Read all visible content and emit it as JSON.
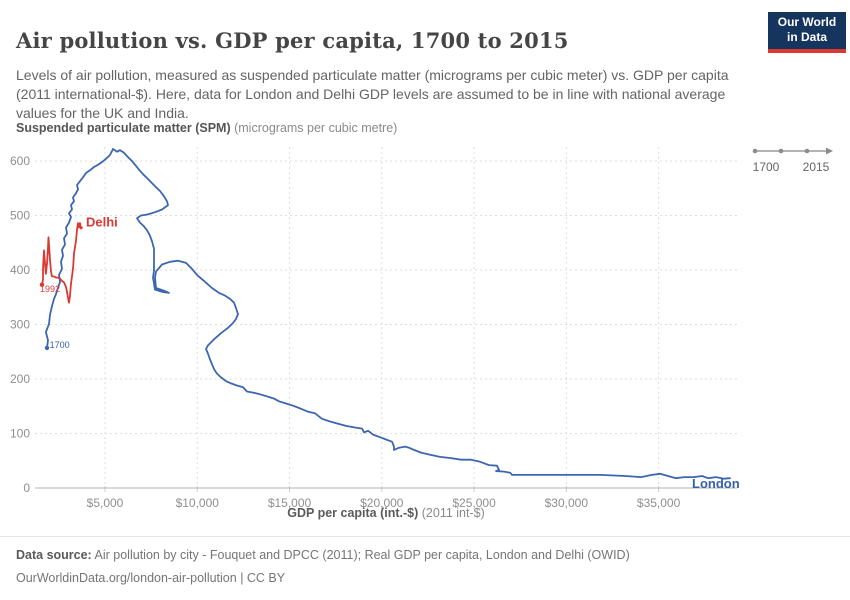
{
  "header": {
    "title": "Air pollution vs. GDP per capita, 1700 to 2015",
    "logo": {
      "line1": "Our World",
      "line2": "in Data"
    },
    "subtitle": "Levels of air pollution, measured as suspended particulate matter (micrograms per cubic meter) vs. GDP per capita (2011 international-$). Here, data for London and Delhi GDP levels are assumed to be in line with national average values for the UK and India."
  },
  "timeline": {
    "start_label": "1700",
    "end_label": "2015"
  },
  "footer": {
    "source_label": "Data source:",
    "source_text": "Air pollution by city - Fouquet and DPCC (2011); Real GDP per capita, London and Delhi (OWID)",
    "link_line": "OurWorldinData.org/london-air-pollution | CC BY"
  },
  "chart_data": {
    "type": "line",
    "title": "Air pollution vs. GDP per capita, 1700 to 2015",
    "xlabel_bold": "GDP per capita (int.-$)",
    "xlabel_unit": "(2011 int-$)",
    "ylabel_bold": "Suspended particulate matter (SPM)",
    "ylabel_unit": "(micrograms per cubic metre)",
    "grid": true,
    "x_axis": {
      "min": 1200,
      "max": 39300,
      "ticks": [
        {
          "v": 5000,
          "label": "$5,000"
        },
        {
          "v": 10000,
          "label": "$10,000"
        },
        {
          "v": 15000,
          "label": "$15,000"
        },
        {
          "v": 20000,
          "label": "$20,000"
        },
        {
          "v": 25000,
          "label": "$25,000"
        },
        {
          "v": 30000,
          "label": "$30,000"
        },
        {
          "v": 35000,
          "label": "$35,000"
        }
      ]
    },
    "y_axis": {
      "min": 0,
      "max": 625,
      "ticks": [
        0,
        100,
        200,
        300,
        400,
        500,
        600
      ]
    },
    "series": [
      {
        "name": "London",
        "color": "#3d66b0",
        "start_year": "1700",
        "end_year": "2015",
        "points": [
          [
            1856,
            257
          ],
          [
            1910,
            271
          ],
          [
            1800,
            286
          ],
          [
            1965,
            301
          ],
          [
            2020,
            318
          ],
          [
            2127,
            334
          ],
          [
            2235,
            347
          ],
          [
            2345,
            356
          ],
          [
            2450,
            367
          ],
          [
            2560,
            378
          ],
          [
            2505,
            391
          ],
          [
            2670,
            402
          ],
          [
            2615,
            415
          ],
          [
            2725,
            426
          ],
          [
            2670,
            437
          ],
          [
            2830,
            447
          ],
          [
            2780,
            458
          ],
          [
            2940,
            467
          ],
          [
            2885,
            478
          ],
          [
            3050,
            487
          ],
          [
            3160,
            497
          ],
          [
            3050,
            504
          ],
          [
            3210,
            511
          ],
          [
            3160,
            519
          ],
          [
            3320,
            526
          ],
          [
            3265,
            533
          ],
          [
            3430,
            541
          ],
          [
            3535,
            548
          ],
          [
            3480,
            556
          ],
          [
            3645,
            563
          ],
          [
            3810,
            570
          ],
          [
            3970,
            578
          ],
          [
            4185,
            583
          ],
          [
            4405,
            589
          ],
          [
            4620,
            593
          ],
          [
            4840,
            598
          ],
          [
            5055,
            604
          ],
          [
            5270,
            611
          ],
          [
            5435,
            622
          ],
          [
            5650,
            617
          ],
          [
            5815,
            620
          ],
          [
            6030,
            615
          ],
          [
            6245,
            607
          ],
          [
            6465,
            600
          ],
          [
            6680,
            591
          ],
          [
            6895,
            582
          ],
          [
            7115,
            574
          ],
          [
            7330,
            567
          ],
          [
            7550,
            559
          ],
          [
            7765,
            552
          ],
          [
            7980,
            545
          ],
          [
            8200,
            535
          ],
          [
            8360,
            526
          ],
          [
            8415,
            519
          ],
          [
            8090,
            511
          ],
          [
            7710,
            506
          ],
          [
            7330,
            502
          ],
          [
            6950,
            500
          ],
          [
            6735,
            495
          ],
          [
            6895,
            487
          ],
          [
            7115,
            480
          ],
          [
            7275,
            473
          ],
          [
            7440,
            463
          ],
          [
            7550,
            452
          ],
          [
            7655,
            439
          ],
          [
            7655,
            425
          ],
          [
            7655,
            410
          ],
          [
            7655,
            399
          ],
          [
            7600,
            386
          ],
          [
            7655,
            375
          ],
          [
            7710,
            364
          ],
          [
            8090,
            360
          ],
          [
            8470,
            358
          ],
          [
            8200,
            362
          ],
          [
            7765,
            367
          ],
          [
            7710,
            386
          ],
          [
            7765,
            397
          ],
          [
            8090,
            410
          ],
          [
            8525,
            415
          ],
          [
            8955,
            417
          ],
          [
            9390,
            413
          ],
          [
            9715,
            402
          ],
          [
            9985,
            391
          ],
          [
            10365,
            380
          ],
          [
            10800,
            367
          ],
          [
            11180,
            358
          ],
          [
            11505,
            353
          ],
          [
            11775,
            347
          ],
          [
            11990,
            340
          ],
          [
            12100,
            330
          ],
          [
            12210,
            319
          ],
          [
            12100,
            310
          ],
          [
            11940,
            303
          ],
          [
            11665,
            294
          ],
          [
            11285,
            284
          ],
          [
            10910,
            273
          ],
          [
            10585,
            262
          ],
          [
            10475,
            255
          ],
          [
            10585,
            246
          ],
          [
            10690,
            236
          ],
          [
            10800,
            227
          ],
          [
            10910,
            218
          ],
          [
            11070,
            210
          ],
          [
            11285,
            203
          ],
          [
            11560,
            196
          ],
          [
            11830,
            192
          ],
          [
            12155,
            188
          ],
          [
            12480,
            185
          ],
          [
            12695,
            177
          ],
          [
            13020,
            175
          ],
          [
            13400,
            172
          ],
          [
            13780,
            168
          ],
          [
            14160,
            164
          ],
          [
            14430,
            159
          ],
          [
            14810,
            155
          ],
          [
            15190,
            151
          ],
          [
            15570,
            146
          ],
          [
            16000,
            140
          ],
          [
            16380,
            137
          ],
          [
            16760,
            127
          ],
          [
            17195,
            122
          ],
          [
            17630,
            118
          ],
          [
            18060,
            114
          ],
          [
            18550,
            111
          ],
          [
            18930,
            109
          ],
          [
            19035,
            102
          ],
          [
            19255,
            105
          ],
          [
            19525,
            98
          ],
          [
            19850,
            94
          ],
          [
            20230,
            89
          ],
          [
            20555,
            85
          ],
          [
            20660,
            76
          ],
          [
            20660,
            70
          ],
          [
            20935,
            74
          ],
          [
            21260,
            76
          ],
          [
            21475,
            74
          ],
          [
            21745,
            70
          ],
          [
            22125,
            65
          ],
          [
            22615,
            61
          ],
          [
            23155,
            57
          ],
          [
            23695,
            55
          ],
          [
            24295,
            52
          ],
          [
            24835,
            52
          ],
          [
            25325,
            48
          ],
          [
            25810,
            42
          ],
          [
            26245,
            41
          ],
          [
            26355,
            33
          ],
          [
            26190,
            31
          ],
          [
            26625,
            30
          ],
          [
            26950,
            28
          ],
          [
            27060,
            24
          ],
          [
            27760,
            24
          ],
          [
            29660,
            24
          ],
          [
            31830,
            24
          ],
          [
            33180,
            22
          ],
          [
            34050,
            20
          ],
          [
            34645,
            24
          ],
          [
            35080,
            26
          ],
          [
            35510,
            22
          ],
          [
            35945,
            18
          ],
          [
            36380,
            20
          ],
          [
            36920,
            20
          ],
          [
            37355,
            22
          ],
          [
            37680,
            18
          ],
          [
            38115,
            20
          ],
          [
            38545,
            17
          ],
          [
            38870,
            18
          ]
        ]
      },
      {
        "name": "Delhi",
        "color": "#d93a34",
        "start_year": "1992",
        "points": [
          [
            1585,
            373
          ],
          [
            1640,
            382
          ],
          [
            1640,
            402
          ],
          [
            1695,
            436
          ],
          [
            1750,
            412
          ],
          [
            1800,
            393
          ],
          [
            1855,
            412
          ],
          [
            1910,
            441
          ],
          [
            1937,
            460
          ],
          [
            2020,
            419
          ],
          [
            2075,
            397
          ],
          [
            2127,
            388
          ],
          [
            2235,
            388
          ],
          [
            2345,
            386
          ],
          [
            2450,
            386
          ],
          [
            2560,
            384
          ],
          [
            2670,
            380
          ],
          [
            2780,
            377
          ],
          [
            2885,
            369
          ],
          [
            2940,
            360
          ],
          [
            2995,
            349
          ],
          [
            3050,
            340
          ],
          [
            3105,
            353
          ],
          [
            3160,
            375
          ],
          [
            3265,
            402
          ],
          [
            3320,
            430
          ],
          [
            3430,
            454
          ],
          [
            3480,
            474
          ],
          [
            3535,
            486
          ],
          [
            3590,
            478
          ],
          [
            3645,
            486
          ],
          [
            3700,
            476
          ],
          [
            3755,
            478
          ]
        ]
      }
    ],
    "annotations": [
      {
        "text": "Delhi",
        "gdp": 3970,
        "spm": 480,
        "color": "#d93a34",
        "cls": "series-label"
      },
      {
        "text": "London",
        "gdp": 36810,
        "spm": 0,
        "color": "#3360a9",
        "cls": "series-label"
      },
      {
        "text": "1992",
        "gdp": 1480,
        "spm": 360,
        "color": "#d93a34",
        "cls": "year-label"
      },
      {
        "text": "1700",
        "gdp": 2000,
        "spm": 257,
        "color": "#3360a9",
        "cls": "year-label"
      }
    ]
  }
}
